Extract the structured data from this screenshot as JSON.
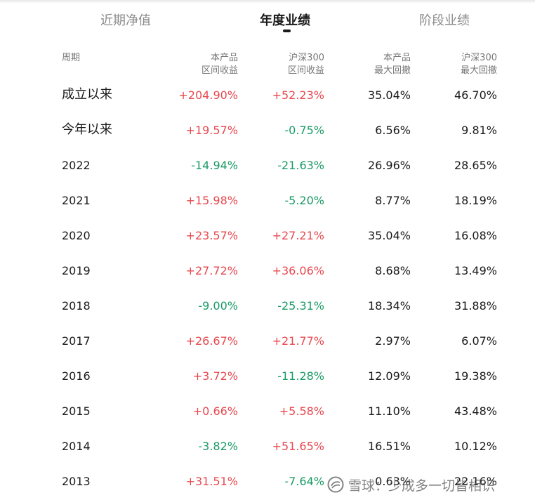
{
  "tabs": [
    {
      "label": "近期净值",
      "active": false
    },
    {
      "label": "年度业绩",
      "active": true
    },
    {
      "label": "阶段业绩",
      "active": false
    }
  ],
  "table": {
    "headers": {
      "period": "周期",
      "product_return": [
        "本产品",
        "区间收益"
      ],
      "index_return": [
        "沪深300",
        "区间收益"
      ],
      "product_drawdown": [
        "本产品",
        "最大回撤"
      ],
      "index_drawdown": [
        "沪深300",
        "最大回撤"
      ]
    },
    "rows": [
      {
        "period": "成立以来",
        "product_return": "+204.90%",
        "index_return": "+52.23%",
        "product_drawdown": "35.04%",
        "index_drawdown": "46.70%"
      },
      {
        "period": "今年以来",
        "product_return": "+19.57%",
        "index_return": "-0.75%",
        "product_drawdown": "6.56%",
        "index_drawdown": "9.81%"
      },
      {
        "period": "2022",
        "product_return": "-14.94%",
        "index_return": "-21.63%",
        "product_drawdown": "26.96%",
        "index_drawdown": "28.65%"
      },
      {
        "period": "2021",
        "product_return": "+15.98%",
        "index_return": "-5.20%",
        "product_drawdown": "8.77%",
        "index_drawdown": "18.19%"
      },
      {
        "period": "2020",
        "product_return": "+23.57%",
        "index_return": "+27.21%",
        "product_drawdown": "35.04%",
        "index_drawdown": "16.08%"
      },
      {
        "period": "2019",
        "product_return": "+27.72%",
        "index_return": "+36.06%",
        "product_drawdown": "8.68%",
        "index_drawdown": "13.49%"
      },
      {
        "period": "2018",
        "product_return": "-9.00%",
        "index_return": "-25.31%",
        "product_drawdown": "18.34%",
        "index_drawdown": "31.88%"
      },
      {
        "period": "2017",
        "product_return": "+26.67%",
        "index_return": "+21.77%",
        "product_drawdown": "2.97%",
        "index_drawdown": "6.07%"
      },
      {
        "period": "2016",
        "product_return": "+3.72%",
        "index_return": "-11.28%",
        "product_drawdown": "12.09%",
        "index_drawdown": "19.38%"
      },
      {
        "period": "2015",
        "product_return": "+0.66%",
        "index_return": "+5.58%",
        "product_drawdown": "11.10%",
        "index_drawdown": "43.48%"
      },
      {
        "period": "2014",
        "product_return": "-3.82%",
        "index_return": "+51.65%",
        "product_drawdown": "16.51%",
        "index_drawdown": "10.12%"
      },
      {
        "period": "2013",
        "product_return": "+31.51%",
        "index_return": "-7.64%",
        "product_drawdown": "0.63%",
        "index_drawdown": "22.16%"
      }
    ]
  },
  "colors": {
    "positive": "#e8484f",
    "negative": "#1a9b66",
    "text": "#1a1a1a",
    "muted": "#8a8a8a"
  },
  "watermark": {
    "icon": "snowball-logo-icon",
    "text": "雪球：少成多一切皆相识"
  }
}
